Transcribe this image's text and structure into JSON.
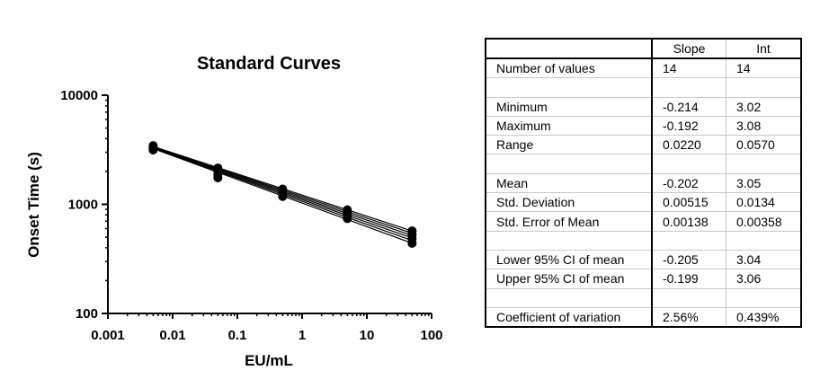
{
  "chart_data": {
    "type": "scatter",
    "title": "Standard Curves",
    "xlabel": "EU/mL",
    "ylabel": "Onset Time (s)",
    "x_scale": "log",
    "y_scale": "log",
    "xlim": [
      0.001,
      100
    ],
    "ylim": [
      100,
      10000
    ],
    "x_ticks": [
      "0.001",
      "0.01",
      "0.1",
      "1",
      "10",
      "100"
    ],
    "y_ticks": [
      "100",
      "1000",
      "10000"
    ],
    "grid": false,
    "legend": "none",
    "marker_color": "#000000",
    "x": [
      0.005,
      0.05,
      0.5,
      5,
      50
    ],
    "point_range": [
      [
        3150,
        3450
      ],
      [
        1750,
        2150
      ],
      [
        1180,
        1380
      ],
      [
        740,
        890
      ],
      [
        440,
        570
      ]
    ]
  },
  "table": {
    "headers": [
      "",
      "Slope",
      "Int"
    ],
    "rows": [
      [
        "Number of values",
        "14",
        "14"
      ],
      [
        "",
        "",
        ""
      ],
      [
        "Minimum",
        "-0.214",
        "3.02"
      ],
      [
        "Maximum",
        "-0.192",
        "3.08"
      ],
      [
        "Range",
        "0.0220",
        "0.0570"
      ],
      [
        "",
        "",
        ""
      ],
      [
        "Mean",
        "-0.202",
        "3.05"
      ],
      [
        "Std. Deviation",
        "0.00515",
        "0.0134"
      ],
      [
        "Std. Error of Mean",
        "0.00138",
        "0.00358"
      ],
      [
        "",
        "",
        ""
      ],
      [
        "Lower 95% CI of mean",
        "-0.205",
        "3.04"
      ],
      [
        "Upper 95% CI of mean",
        "-0.199",
        "3.06"
      ],
      [
        "",
        "",
        ""
      ],
      [
        "Coefficient of variation",
        "2.56%",
        "0.439%"
      ]
    ]
  }
}
